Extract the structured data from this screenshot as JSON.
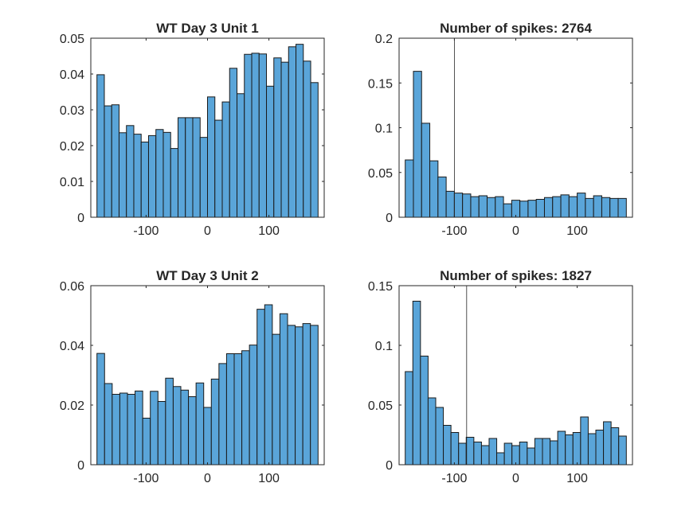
{
  "chart_data": [
    {
      "type": "bar",
      "title": "WT Day 3 Unit 1",
      "xlim": [
        -190,
        190
      ],
      "ylim": [
        0,
        0.05
      ],
      "xticks": [
        -100,
        0,
        100
      ],
      "yticks": [
        0,
        0.01,
        0.02,
        0.03,
        0.04,
        0.05
      ],
      "xtick_labels": [
        "-100",
        "0",
        "100"
      ],
      "ytick_labels": [
        "0",
        "0.01",
        "0.02",
        "0.03",
        "0.04",
        "0.05"
      ],
      "bin_edges": [
        -180,
        180
      ],
      "values": [
        0.0398,
        0.0311,
        0.0314,
        0.0236,
        0.0256,
        0.0232,
        0.021,
        0.0228,
        0.0245,
        0.0237,
        0.0192,
        0.0278,
        0.0278,
        0.0278,
        0.0223,
        0.0336,
        0.0271,
        0.0322,
        0.0416,
        0.0345,
        0.0455,
        0.0458,
        0.0456,
        0.0366,
        0.0445,
        0.0433,
        0.0476,
        0.0483,
        0.0436,
        0.0376
      ],
      "color": "#5aa5d9"
    },
    {
      "type": "bar",
      "title": "Number of spikes: 2764",
      "xlim": [
        -190,
        190
      ],
      "ylim": [
        0,
        0.2
      ],
      "xticks": [
        -100,
        0,
        100
      ],
      "yticks": [
        0,
        0.05,
        0.1,
        0.15,
        0.2
      ],
      "xtick_labels": [
        "-100",
        "0",
        "100"
      ],
      "ytick_labels": [
        "0",
        "0.05",
        "0.1",
        "0.15",
        "0.2"
      ],
      "bin_edges": [
        -180,
        180
      ],
      "values": [
        0.064,
        0.163,
        0.105,
        0.063,
        0.045,
        0.029,
        0.027,
        0.026,
        0.023,
        0.024,
        0.022,
        0.023,
        0.015,
        0.019,
        0.018,
        0.019,
        0.02,
        0.022,
        0.023,
        0.025,
        0.023,
        0.027,
        0.021,
        0.024,
        0.022,
        0.021,
        0.021
      ],
      "vline": -100,
      "color": "#5aa5d9"
    },
    {
      "type": "bar",
      "title": "WT Day 3 Unit 2",
      "xlim": [
        -190,
        190
      ],
      "ylim": [
        0,
        0.06
      ],
      "xticks": [
        -100,
        0,
        100
      ],
      "yticks": [
        0,
        0.02,
        0.04,
        0.06
      ],
      "xtick_labels": [
        "-100",
        "0",
        "100"
      ],
      "ytick_labels": [
        "0",
        "0.02",
        "0.04",
        "0.06"
      ],
      "bin_edges": [
        -180,
        180
      ],
      "values": [
        0.0373,
        0.0272,
        0.0236,
        0.024,
        0.0236,
        0.0247,
        0.0156,
        0.0246,
        0.0212,
        0.029,
        0.0262,
        0.025,
        0.0228,
        0.0274,
        0.0192,
        0.0287,
        0.0339,
        0.0372,
        0.0372,
        0.0382,
        0.0401,
        0.0521,
        0.0536,
        0.0437,
        0.0506,
        0.0467,
        0.0462,
        0.0473,
        0.0467
      ],
      "color": "#5aa5d9"
    },
    {
      "type": "bar",
      "title": "Number of spikes: 1827",
      "xlim": [
        -190,
        190
      ],
      "ylim": [
        0,
        0.15
      ],
      "xticks": [
        -100,
        0,
        100
      ],
      "yticks": [
        0,
        0.05,
        0.1,
        0.15
      ],
      "xtick_labels": [
        "-100",
        "0",
        "100"
      ],
      "ytick_labels": [
        "0",
        "0.05",
        "0.1",
        "0.15"
      ],
      "bin_edges": [
        -180,
        180
      ],
      "values": [
        0.078,
        0.137,
        0.091,
        0.056,
        0.048,
        0.033,
        0.027,
        0.018,
        0.023,
        0.019,
        0.016,
        0.022,
        0.01,
        0.018,
        0.016,
        0.019,
        0.014,
        0.022,
        0.022,
        0.02,
        0.028,
        0.025,
        0.027,
        0.04,
        0.026,
        0.029,
        0.036,
        0.031,
        0.024
      ],
      "vline": -80,
      "color": "#5aa5d9"
    }
  ]
}
